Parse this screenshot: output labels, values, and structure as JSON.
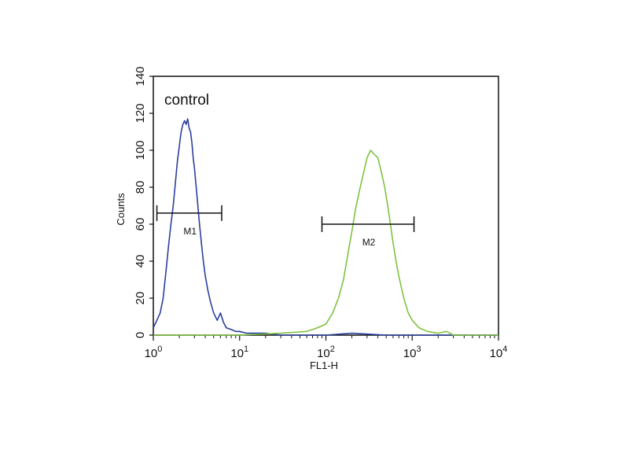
{
  "chart_data": {
    "type": "line",
    "title": "",
    "annotation": "control",
    "xlabel": "FL1-H",
    "ylabel": "Counts",
    "xscale": "log",
    "xlim": [
      1,
      10000
    ],
    "ylim": [
      0,
      140
    ],
    "x_ticks": [
      {
        "base": "10",
        "exp": "0",
        "value": 1
      },
      {
        "base": "10",
        "exp": "1",
        "value": 10
      },
      {
        "base": "10",
        "exp": "2",
        "value": 100
      },
      {
        "base": "10",
        "exp": "3",
        "value": 1000
      },
      {
        "base": "10",
        "exp": "4",
        "value": 10000
      }
    ],
    "y_ticks": [
      "0",
      "20",
      "40",
      "60",
      "80",
      "100",
      "120",
      "140"
    ],
    "grid": false,
    "markers": [
      {
        "label": "M1",
        "x_start": 1.1,
        "x_end": 6.2,
        "y": 66
      },
      {
        "label": "M2",
        "x_start": 90,
        "x_end": 1050,
        "y": 60
      }
    ],
    "series": [
      {
        "color": "#2b3f9e",
        "x": [
          1.0,
          1.1,
          1.2,
          1.3,
          1.4,
          1.5,
          1.6,
          1.7,
          1.8,
          1.9,
          2.0,
          2.1,
          2.2,
          2.3,
          2.4,
          2.5,
          2.6,
          2.7,
          2.8,
          2.9,
          3.0,
          3.2,
          3.4,
          3.6,
          3.8,
          4.0,
          4.3,
          4.6,
          5.0,
          5.5,
          6.0,
          6.5,
          7.0,
          8.0,
          9.0,
          10,
          12,
          15,
          20,
          30,
          50,
          100,
          200,
          500,
          1000,
          10000
        ],
        "y": [
          4,
          8,
          12,
          20,
          34,
          48,
          60,
          70,
          82,
          94,
          102,
          110,
          114,
          116,
          114,
          117,
          112,
          110,
          104,
          96,
          90,
          76,
          62,
          50,
          40,
          32,
          24,
          18,
          12,
          8,
          12,
          7,
          4,
          3,
          2,
          2,
          1,
          1,
          1,
          0,
          0,
          0,
          1,
          0,
          0,
          0
        ]
      },
      {
        "color": "#7fc241",
        "x": [
          1,
          10,
          30,
          60,
          80,
          100,
          120,
          140,
          160,
          180,
          200,
          220,
          250,
          280,
          300,
          330,
          360,
          400,
          440,
          480,
          520,
          560,
          600,
          650,
          700,
          800,
          900,
          1000,
          1200,
          1500,
          2000,
          2500,
          3000,
          5000,
          10000
        ],
        "y": [
          0,
          0,
          1,
          2,
          4,
          6,
          12,
          20,
          30,
          44,
          56,
          68,
          80,
          90,
          96,
          100,
          98,
          96,
          88,
          80,
          70,
          60,
          50,
          40,
          32,
          20,
          12,
          8,
          4,
          2,
          1,
          2,
          0,
          0,
          0
        ]
      }
    ]
  }
}
